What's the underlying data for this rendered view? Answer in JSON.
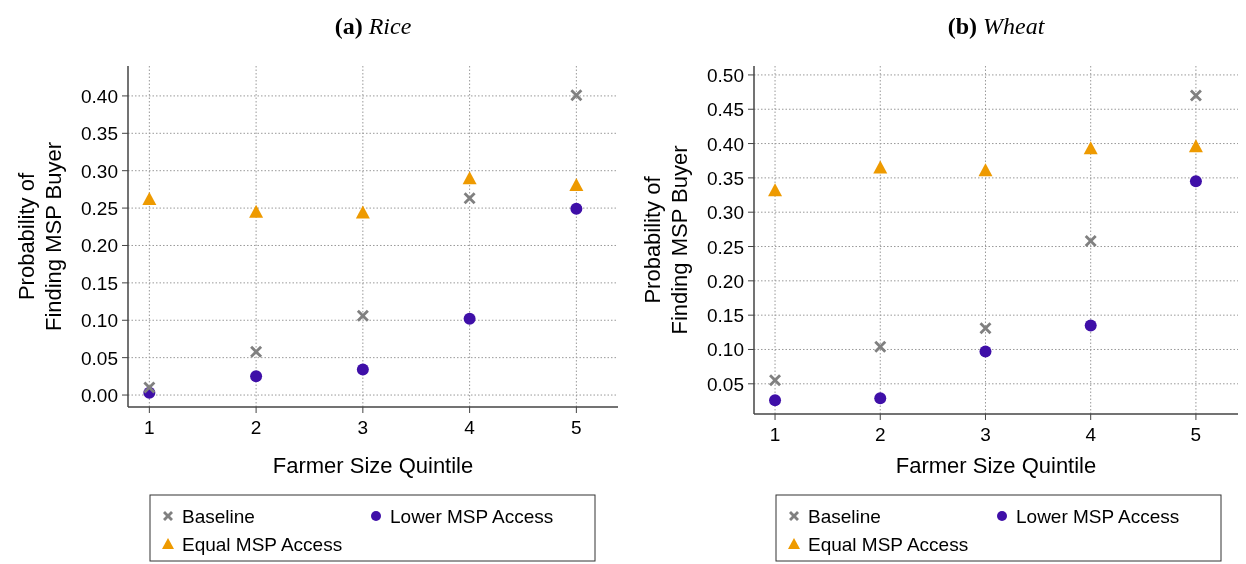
{
  "chart_data": [
    {
      "type": "scatter",
      "title": "(a) Rice",
      "xlabel": "Farmer Size Quintile",
      "ylabel": "Probability of\nFinding MSP Buyer",
      "x": [
        1,
        2,
        3,
        4,
        5
      ],
      "xlim": [
        0.8,
        5.39
      ],
      "xticks": [
        1,
        2,
        3,
        4,
        5
      ],
      "ylim": [
        -0.016,
        0.44
      ],
      "yticks": [
        {
          "value": 0,
          "label": "0.00"
        },
        0.05,
        {
          "value": 0.1,
          "label": "0.10"
        },
        0.15,
        {
          "value": 0.2,
          "label": "0.20"
        },
        0.25,
        {
          "value": 0.3,
          "label": "0.30"
        },
        0.35,
        {
          "value": 0.4,
          "label": "0.40"
        }
      ],
      "grid": true,
      "legend": "bottom",
      "series": [
        {
          "name": "Baseline",
          "color": "#808080",
          "marker": "cross",
          "values": [
            0.01,
            0.058,
            0.106,
            0.263,
            0.401
          ]
        },
        {
          "name": "Equal MSP Access",
          "color": "#ee9a00",
          "marker": "triangle",
          "values": [
            0.262,
            0.245,
            0.244,
            0.29,
            0.281
          ]
        },
        {
          "name": "Lower MSP Access",
          "color": "#3f0fa8",
          "marker": "circle",
          "values": [
            0.003,
            0.025,
            0.034,
            0.102,
            0.249
          ]
        }
      ]
    },
    {
      "type": "scatter",
      "title": "(b) Wheat",
      "xlabel": "Farmer Size Quintile",
      "ylabel": "Probability of\nFinding MSP Buyer",
      "x": [
        1,
        2,
        3,
        4,
        5
      ],
      "xlim": [
        0.8,
        5.4
      ],
      "xticks": [
        1,
        2,
        3,
        4,
        5
      ],
      "ylim": [
        0.006,
        0.513
      ],
      "yticks": [
        0.05,
        {
          "value": 0.1,
          "label": "0.10"
        },
        0.15,
        {
          "value": 0.2,
          "label": "0.20"
        },
        0.25,
        {
          "value": 0.3,
          "label": "0.30"
        },
        0.35,
        {
          "value": 0.4,
          "label": "0.40"
        },
        0.45,
        {
          "value": 0.5,
          "label": "0.50"
        }
      ],
      "grid": true,
      "legend": "bottom",
      "series": [
        {
          "name": "Baseline",
          "color": "#808080",
          "marker": "cross",
          "values": [
            0.055,
            0.104,
            0.131,
            0.258,
            0.47
          ]
        },
        {
          "name": "Equal MSP Access",
          "color": "#ee9a00",
          "marker": "triangle",
          "values": [
            0.332,
            0.365,
            0.361,
            0.393,
            0.396
          ]
        },
        {
          "name": "Lower MSP Access",
          "color": "#3f0fa8",
          "marker": "circle",
          "values": [
            0.026,
            0.029,
            0.097,
            0.135,
            0.345
          ]
        }
      ]
    }
  ]
}
